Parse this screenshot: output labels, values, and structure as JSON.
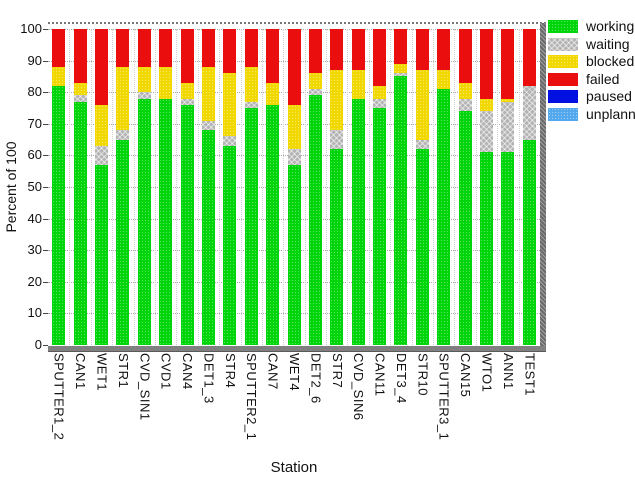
{
  "figure": {
    "ylabel": "Percent of 100",
    "xlabel": "Station",
    "y_ticks": [
      0,
      10,
      20,
      30,
      40,
      50,
      60,
      70,
      80,
      90,
      100
    ]
  },
  "legend": {
    "items": [
      {
        "label": "working",
        "color": "#00d40a"
      },
      {
        "label": "waiting",
        "color": "#b3b3b3"
      },
      {
        "label": "blocked",
        "color": "#f0d800"
      },
      {
        "label": "failed",
        "color": "#ea0e0e"
      },
      {
        "label": "paused",
        "color": "#0010e0"
      },
      {
        "label": "unplanned",
        "color": "#54a8ee"
      }
    ]
  },
  "chart_data": {
    "type": "bar",
    "stacked": true,
    "title": "",
    "xlabel": "Station",
    "ylabel": "Percent of 100",
    "ylim": [
      0,
      100
    ],
    "grid": true,
    "legend_position": "right",
    "categories": [
      "SPUTTER1_2",
      "CAN1",
      "WET1",
      "STR1",
      "CVD_SIN1",
      "CVD1",
      "CAN4",
      "DET1_3",
      "STR4",
      "SPUTTER2_1",
      "CAN7",
      "WET4",
      "DET2_6",
      "STR7",
      "CVD_SIN6",
      "CAN11",
      "DET3_4",
      "STR10",
      "SPUTTER3_1",
      "CAN15",
      "WTO1",
      "ANN1",
      "TEST1"
    ],
    "series": [
      {
        "name": "working",
        "color": "#00d40a",
        "values": [
          82,
          77,
          57,
          65,
          78,
          78,
          76,
          68,
          63,
          75,
          76,
          57,
          79,
          62,
          78,
          75,
          85,
          62,
          81,
          74,
          61,
          61,
          65
        ]
      },
      {
        "name": "waiting",
        "color": "#b3b3b3",
        "values": [
          0,
          2,
          6,
          3,
          2,
          0,
          2,
          3,
          3,
          2,
          0,
          5,
          2,
          6,
          0,
          3,
          1,
          3,
          0,
          4,
          13,
          16,
          17
        ]
      },
      {
        "name": "blocked",
        "color": "#f0d800",
        "values": [
          6,
          4,
          13,
          20,
          8,
          10,
          5,
          17,
          20,
          11,
          7,
          14,
          5,
          19,
          9,
          4,
          3,
          22,
          6,
          5,
          4,
          1,
          0
        ]
      },
      {
        "name": "failed",
        "color": "#ea0e0e",
        "values": [
          12,
          17,
          24,
          12,
          12,
          12,
          17,
          12,
          14,
          12,
          17,
          24,
          14,
          13,
          13,
          18,
          11,
          13,
          13,
          17,
          22,
          22,
          18
        ]
      },
      {
        "name": "paused",
        "color": "#0010e0",
        "values": [
          0,
          0,
          0,
          0,
          0,
          0,
          0,
          0,
          0,
          0,
          0,
          0,
          0,
          0,
          0,
          0,
          0,
          0,
          0,
          0,
          0,
          0,
          0
        ]
      },
      {
        "name": "unplanned",
        "color": "#54a8ee",
        "values": [
          0,
          0,
          0,
          0,
          0,
          0,
          0,
          0,
          0,
          0,
          0,
          0,
          0,
          0,
          0,
          0,
          0,
          0,
          0,
          0,
          0,
          0,
          0
        ]
      }
    ]
  }
}
